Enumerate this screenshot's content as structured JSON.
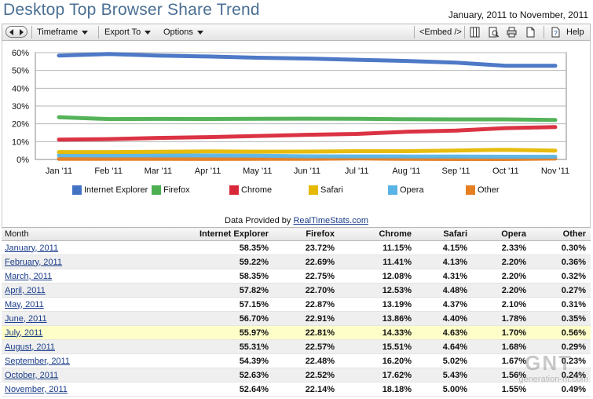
{
  "header": {
    "title": "Desktop Top Browser Share Trend",
    "date_range": "January, 2011 to November, 2011"
  },
  "toolbar": {
    "timeframe_label": "Timeframe",
    "export_label": "Export To",
    "options_label": "Options",
    "embed_label": "<Embed />",
    "help_label": "Help"
  },
  "credit": {
    "prefix": "Data Provided by ",
    "link": "RealTimeStats.com"
  },
  "watermark": {
    "big": "GNT",
    "small": "generation-nt.com"
  },
  "chart_data": {
    "type": "line",
    "categories": [
      "Jan '11",
      "Feb '11",
      "Mar '11",
      "Apr '11",
      "May '11",
      "Jun '11",
      "Jul '11",
      "Aug '11",
      "Sep '11",
      "Oct '11",
      "Nov '11"
    ],
    "y_ticks": [
      "0%",
      "10%",
      "20%",
      "30%",
      "40%",
      "50%",
      "60%"
    ],
    "ylim": [
      0,
      60
    ],
    "grid": true,
    "legend_position": "bottom",
    "series": [
      {
        "name": "Internet Explorer",
        "color": "#4472c4",
        "values": [
          58.35,
          59.22,
          58.35,
          57.82,
          57.15,
          56.7,
          55.97,
          55.31,
          54.39,
          52.63,
          52.64
        ]
      },
      {
        "name": "Firefox",
        "color": "#4caf50",
        "values": [
          23.72,
          22.69,
          22.75,
          22.7,
          22.87,
          22.91,
          22.81,
          22.57,
          22.48,
          22.52,
          22.14
        ]
      },
      {
        "name": "Chrome",
        "color": "#d9283a",
        "values": [
          11.15,
          11.41,
          12.08,
          12.53,
          13.19,
          13.86,
          14.33,
          15.51,
          16.2,
          17.62,
          18.18
        ]
      },
      {
        "name": "Safari",
        "color": "#e6b800",
        "values": [
          4.15,
          4.13,
          4.31,
          4.48,
          4.37,
          4.4,
          4.63,
          4.64,
          5.02,
          5.43,
          5.0
        ]
      },
      {
        "name": "Opera",
        "color": "#5ab4e6",
        "values": [
          2.33,
          2.2,
          2.2,
          2.2,
          2.1,
          1.78,
          1.7,
          1.68,
          1.67,
          1.56,
          1.55
        ]
      },
      {
        "name": "Other",
        "color": "#e67e22",
        "values": [
          0.3,
          0.36,
          0.32,
          0.27,
          0.31,
          0.35,
          0.56,
          0.29,
          0.23,
          0.24,
          0.49
        ]
      }
    ]
  },
  "table": {
    "headers": [
      "Month",
      "Internet Explorer",
      "Firefox",
      "Chrome",
      "Safari",
      "Opera",
      "Other"
    ],
    "highlight_row": 6,
    "rows": [
      [
        "January, 2011",
        "58.35%",
        "23.72%",
        "11.15%",
        "4.15%",
        "2.33%",
        "0.30%"
      ],
      [
        "February, 2011",
        "59.22%",
        "22.69%",
        "11.41%",
        "4.13%",
        "2.20%",
        "0.36%"
      ],
      [
        "March, 2011",
        "58.35%",
        "22.75%",
        "12.08%",
        "4.31%",
        "2.20%",
        "0.32%"
      ],
      [
        "April, 2011",
        "57.82%",
        "22.70%",
        "12.53%",
        "4.48%",
        "2.20%",
        "0.27%"
      ],
      [
        "May, 2011",
        "57.15%",
        "22.87%",
        "13.19%",
        "4.37%",
        "2.10%",
        "0.31%"
      ],
      [
        "June, 2011",
        "56.70%",
        "22.91%",
        "13.86%",
        "4.40%",
        "1.78%",
        "0.35%"
      ],
      [
        "July, 2011",
        "55.97%",
        "22.81%",
        "14.33%",
        "4.63%",
        "1.70%",
        "0.56%"
      ],
      [
        "August, 2011",
        "55.31%",
        "22.57%",
        "15.51%",
        "4.64%",
        "1.68%",
        "0.29%"
      ],
      [
        "September, 2011",
        "54.39%",
        "22.48%",
        "16.20%",
        "5.02%",
        "1.67%",
        "0.23%"
      ],
      [
        "October, 2011",
        "52.63%",
        "22.52%",
        "17.62%",
        "5.43%",
        "1.56%",
        "0.24%"
      ],
      [
        "November, 2011",
        "52.64%",
        "22.14%",
        "18.18%",
        "5.00%",
        "1.55%",
        "0.49%"
      ]
    ]
  }
}
